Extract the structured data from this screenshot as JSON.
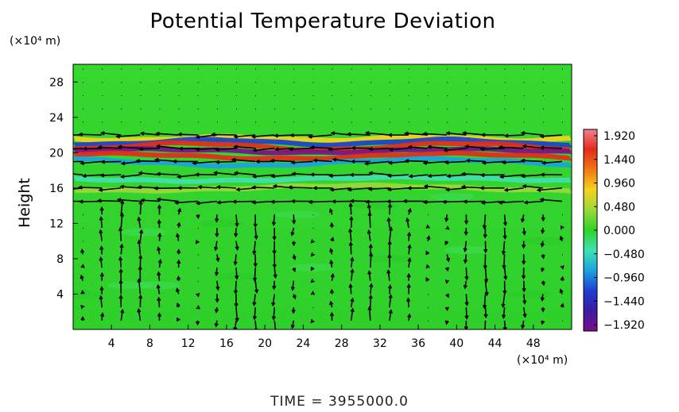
{
  "chart_data": {
    "type": "heatmap",
    "title": "Potential Temperature Deviation",
    "ylabel": "Height",
    "y_unit": "(×10⁴ m)",
    "x_unit": "(×10⁴ m)",
    "xlim": [
      0,
      52
    ],
    "ylim": [
      0,
      30
    ],
    "x_ticks": [
      "4",
      "8",
      "12",
      "16",
      "20",
      "24",
      "28",
      "32",
      "36",
      "40",
      "44",
      "48"
    ],
    "y_ticks": [
      "4",
      "8",
      "12",
      "16",
      "20",
      "24",
      "28"
    ],
    "colorbar": {
      "ticks": [
        "1.920",
        "1.440",
        "0.960",
        "0.480",
        "0.000",
        "−0.480",
        "−0.960",
        "−1.440",
        "−1.920"
      ],
      "range": [
        -1.92,
        1.92
      ],
      "colors": [
        "#f08090",
        "#e52a1a",
        "#f07a14",
        "#f5d21e",
        "#9ad83a",
        "#2fd32c",
        "#40e0b0",
        "#19a3e0",
        "#1d3fd0",
        "#3c1aa0",
        "#7a0f8a"
      ]
    },
    "bands": [
      {
        "y": 21.6,
        "value": 0.6
      },
      {
        "y": 21.2,
        "value": -1.2
      },
      {
        "y": 20.7,
        "value": 1.6
      },
      {
        "y": 20.2,
        "value": -1.9
      },
      {
        "y": 19.6,
        "value": 1.4
      },
      {
        "y": 18.9,
        "value": -0.9
      },
      {
        "y": 17.0,
        "value": -0.5
      },
      {
        "y": 16.0,
        "value": 0.5
      }
    ],
    "vector_field": "wind arrows over domain"
  },
  "time_label": "TIME  =  3955000.0"
}
